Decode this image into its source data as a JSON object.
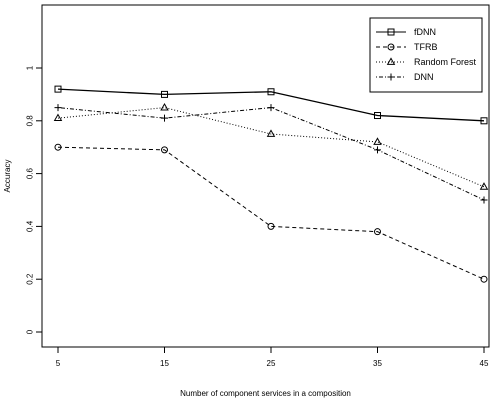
{
  "chart_data": {
    "type": "line",
    "xlabel": "Number of component services in a composition",
    "ylabel": "Accuracy",
    "x": [
      5,
      15,
      25,
      35,
      45
    ],
    "xticks": [
      "5",
      "15",
      "25",
      "35",
      "45"
    ],
    "yticks": [
      "0",
      "0.2",
      "0.4",
      "0.6",
      "0.8",
      "1"
    ],
    "ylim": [
      0,
      1.2
    ],
    "xlim": [
      5,
      45
    ],
    "grid": false,
    "legend_position": "top-right",
    "series": [
      {
        "name": "fDNN",
        "values": [
          0.92,
          0.9,
          0.91,
          0.82,
          0.8
        ],
        "line": "solid",
        "marker": "square"
      },
      {
        "name": "TFRB",
        "values": [
          0.7,
          0.69,
          0.4,
          0.38,
          0.2
        ],
        "line": "dashed",
        "marker": "circle"
      },
      {
        "name": "Random Forest",
        "values": [
          0.81,
          0.85,
          0.75,
          0.72,
          0.55
        ],
        "line": "dotted",
        "marker": "triangle"
      },
      {
        "name": "DNN",
        "values": [
          0.85,
          0.81,
          0.85,
          0.69,
          0.5
        ],
        "line": "dotdash",
        "marker": "plus"
      }
    ],
    "colors": {
      "line": "#000000",
      "background": "#ffffff"
    }
  }
}
